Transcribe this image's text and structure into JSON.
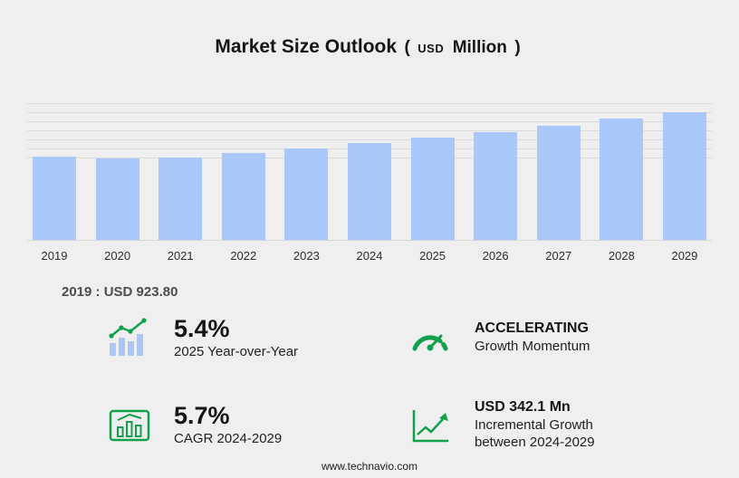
{
  "title": {
    "main": "Market Size Outlook",
    "paren_open": "(",
    "currency": "USD",
    "unit": "Million",
    "paren_close": ")"
  },
  "chart_data": {
    "type": "bar",
    "title": "Market Size Outlook (USD Million)",
    "categories": [
      "2019",
      "2020",
      "2021",
      "2022",
      "2023",
      "2024",
      "2025",
      "2026",
      "2027",
      "2028",
      "2029"
    ],
    "values": [
      923.8,
      900.5,
      915.2,
      960.4,
      1008.7,
      1071.0,
      1128.8,
      1195.3,
      1262.1,
      1343.6,
      1413.1
    ],
    "xlabel": "",
    "ylabel": "",
    "ylim": [
      0,
      1500
    ],
    "gridline_values": [
      900,
      1000,
      1100,
      1200,
      1300,
      1400,
      1500
    ],
    "grid": true,
    "legend": false,
    "bar_color": "#a9c7f8"
  },
  "annotation_2019": "2019 : USD  923.80",
  "stats": {
    "yoy": {
      "value": "5.4%",
      "label": "2025 Year-over-Year"
    },
    "momentum": {
      "value": "ACCELERATING",
      "label": "Growth Momentum"
    },
    "cagr": {
      "value": "5.7%",
      "label": "CAGR 2024-2029"
    },
    "incremental": {
      "value": "USD 342.1 Mn",
      "label_line1": "Incremental Growth",
      "label_line2": "between 2024-2029"
    }
  },
  "footer": {
    "url": "www.technavio.com"
  },
  "colors": {
    "background": "#f0efef",
    "bar_blue": "#a9c7f8",
    "accent_green": "#12a14b",
    "gridline": "#dadada"
  }
}
